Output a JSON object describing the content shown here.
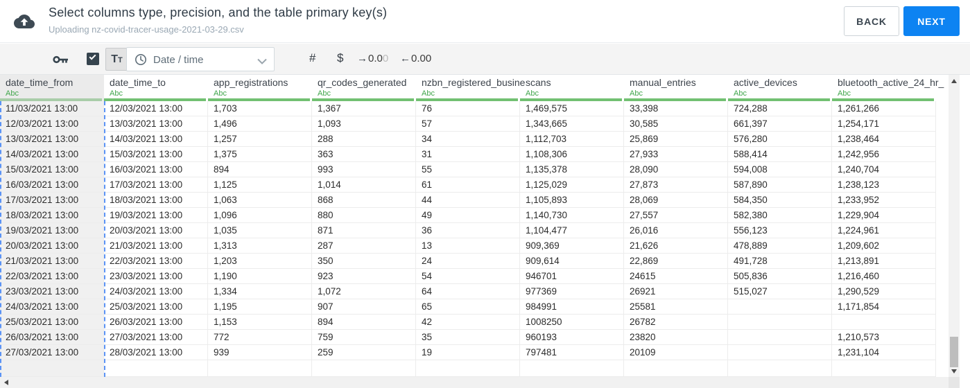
{
  "header": {
    "title": "Select columns type, precision, and the table primary key(s)",
    "subtitle": "Uploading nz-covid-tracer-usage-2021-03-29.csv",
    "back_label": "BACK",
    "next_label": "NEXT"
  },
  "toolbar": {
    "text_type_large": "T",
    "text_type_small": "T",
    "dropdown_value": "Date / time",
    "number_symbol": "#",
    "currency_symbol": "$",
    "increase_decimal": {
      "arrow": "→",
      "main": "0.0",
      "faded": "0"
    },
    "decrease_decimal": {
      "arrow": "←",
      "value": "0.00"
    }
  },
  "table": {
    "columns": [
      {
        "name": "date_time_from",
        "type": "Abc",
        "selected": true
      },
      {
        "name": "date_time_to",
        "type": "Abc",
        "selected": false
      },
      {
        "name": "app_registrations",
        "type": "Abc",
        "selected": false
      },
      {
        "name": "qr_codes_generated",
        "type": "Abc",
        "selected": false
      },
      {
        "name": "nzbn_registered_busine",
        "type": "Abc",
        "selected": false
      },
      {
        "name": "scans",
        "type": "Abc",
        "selected": false
      },
      {
        "name": "manual_entries",
        "type": "Abc",
        "selected": false
      },
      {
        "name": "active_devices",
        "type": "Abc",
        "selected": false
      },
      {
        "name": "bluetooth_active_24_hr_",
        "type": "Abc",
        "selected": false
      }
    ],
    "rows": [
      [
        "11/03/2021 13:00",
        "12/03/2021 13:00",
        "1,703",
        "1,367",
        "76",
        "1,469,575",
        "33,398",
        "724,288",
        "1,261,266"
      ],
      [
        "12/03/2021 13:00",
        "13/03/2021 13:00",
        "1,496",
        "1,093",
        "57",
        "1,343,665",
        "30,585",
        "661,397",
        "1,254,171"
      ],
      [
        "13/03/2021 13:00",
        "14/03/2021 13:00",
        "1,257",
        "288",
        "34",
        "1,112,703",
        "25,869",
        "576,280",
        "1,238,464"
      ],
      [
        "14/03/2021 13:00",
        "15/03/2021 13:00",
        "1,375",
        "363",
        "31",
        "1,108,306",
        "27,933",
        "588,414",
        "1,242,956"
      ],
      [
        "15/03/2021 13:00",
        "16/03/2021 13:00",
        "894",
        "993",
        "55",
        "1,135,378",
        "28,090",
        "594,008",
        "1,240,704"
      ],
      [
        "16/03/2021 13:00",
        "17/03/2021 13:00",
        "1,125",
        "1,014",
        "61",
        "1,125,029",
        "27,873",
        "587,890",
        "1,238,123"
      ],
      [
        "17/03/2021 13:00",
        "18/03/2021 13:00",
        "1,063",
        "868",
        "44",
        "1,105,893",
        "28,069",
        "584,350",
        "1,233,952"
      ],
      [
        "18/03/2021 13:00",
        "19/03/2021 13:00",
        "1,096",
        "880",
        "49",
        "1,140,730",
        "27,557",
        "582,380",
        "1,229,904"
      ],
      [
        "19/03/2021 13:00",
        "20/03/2021 13:00",
        "1,035",
        "871",
        "36",
        "1,104,477",
        "26,016",
        "556,123",
        "1,224,961"
      ],
      [
        "20/03/2021 13:00",
        "21/03/2021 13:00",
        "1,313",
        "287",
        "13",
        "909,369",
        "21,626",
        "478,889",
        "1,209,602"
      ],
      [
        "21/03/2021 13:00",
        "22/03/2021 13:00",
        "1,203",
        "350",
        "24",
        "909,614",
        "22,869",
        "491,728",
        "1,213,891"
      ],
      [
        "22/03/2021 13:00",
        "23/03/2021 13:00",
        "1,190",
        "923",
        "54",
        "946701",
        "24615",
        "505,836",
        "1,216,460"
      ],
      [
        "23/03/2021 13:00",
        "24/03/2021 13:00",
        "1,334",
        "1,072",
        "64",
        "977369",
        "26921",
        "515,027",
        "1,290,529"
      ],
      [
        "24/03/2021 13:00",
        "25/03/2021 13:00",
        "1,195",
        "907",
        "65",
        "984991",
        "25581",
        "",
        "1,171,854"
      ],
      [
        "25/03/2021 13:00",
        "26/03/2021 13:00",
        "1,153",
        "894",
        "42",
        "1008250",
        "26782",
        "",
        ""
      ],
      [
        "26/03/2021 13:00",
        "27/03/2021 13:00",
        "772",
        "759",
        "35",
        "960193",
        "23820",
        "",
        "1,210,573"
      ],
      [
        "27/03/2021 13:00",
        "28/03/2021 13:00",
        "939",
        "259",
        "19",
        "797481",
        "20109",
        "",
        "1,231,104"
      ]
    ],
    "partial_empty_row": true
  },
  "colors": {
    "next_button_blue": "#0d83f2",
    "selection_dashed_blue": "#5b93f5",
    "type_label_green": "#3fa54a",
    "header_bar_green": "#72c072",
    "toolbar_background": "#f4f4f4",
    "dark_icon": "#36444e"
  }
}
